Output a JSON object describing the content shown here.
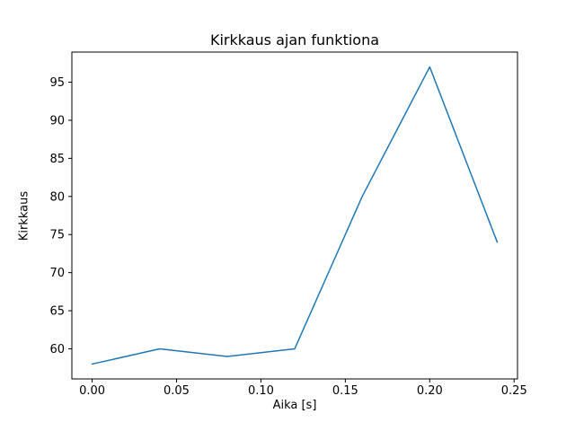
{
  "chart_data": {
    "type": "line",
    "title": "Kirkkaus ajan funktiona",
    "xlabel": "Aika [s]",
    "ylabel": "Kirkkaus",
    "x": [
      0.0,
      0.04,
      0.08,
      0.12,
      0.16,
      0.2,
      0.24
    ],
    "y": [
      58,
      60,
      59,
      60,
      80,
      97,
      74
    ],
    "xlim": [
      -0.012,
      0.252
    ],
    "ylim": [
      56.05,
      98.95
    ],
    "xticks": {
      "values": [
        0.0,
        0.05,
        0.1,
        0.15,
        0.2,
        0.25
      ],
      "labels": [
        "0.00",
        "0.05",
        "0.10",
        "0.15",
        "0.20",
        "0.25"
      ]
    },
    "yticks": {
      "values": [
        60,
        65,
        70,
        75,
        80,
        85,
        90,
        95
      ],
      "labels": [
        "60",
        "65",
        "70",
        "75",
        "80",
        "85",
        "90",
        "95"
      ]
    },
    "line_color": "#1f77b4",
    "axis_color": "#000000",
    "background_color": "#ffffff",
    "grid": false,
    "legend": null
  }
}
